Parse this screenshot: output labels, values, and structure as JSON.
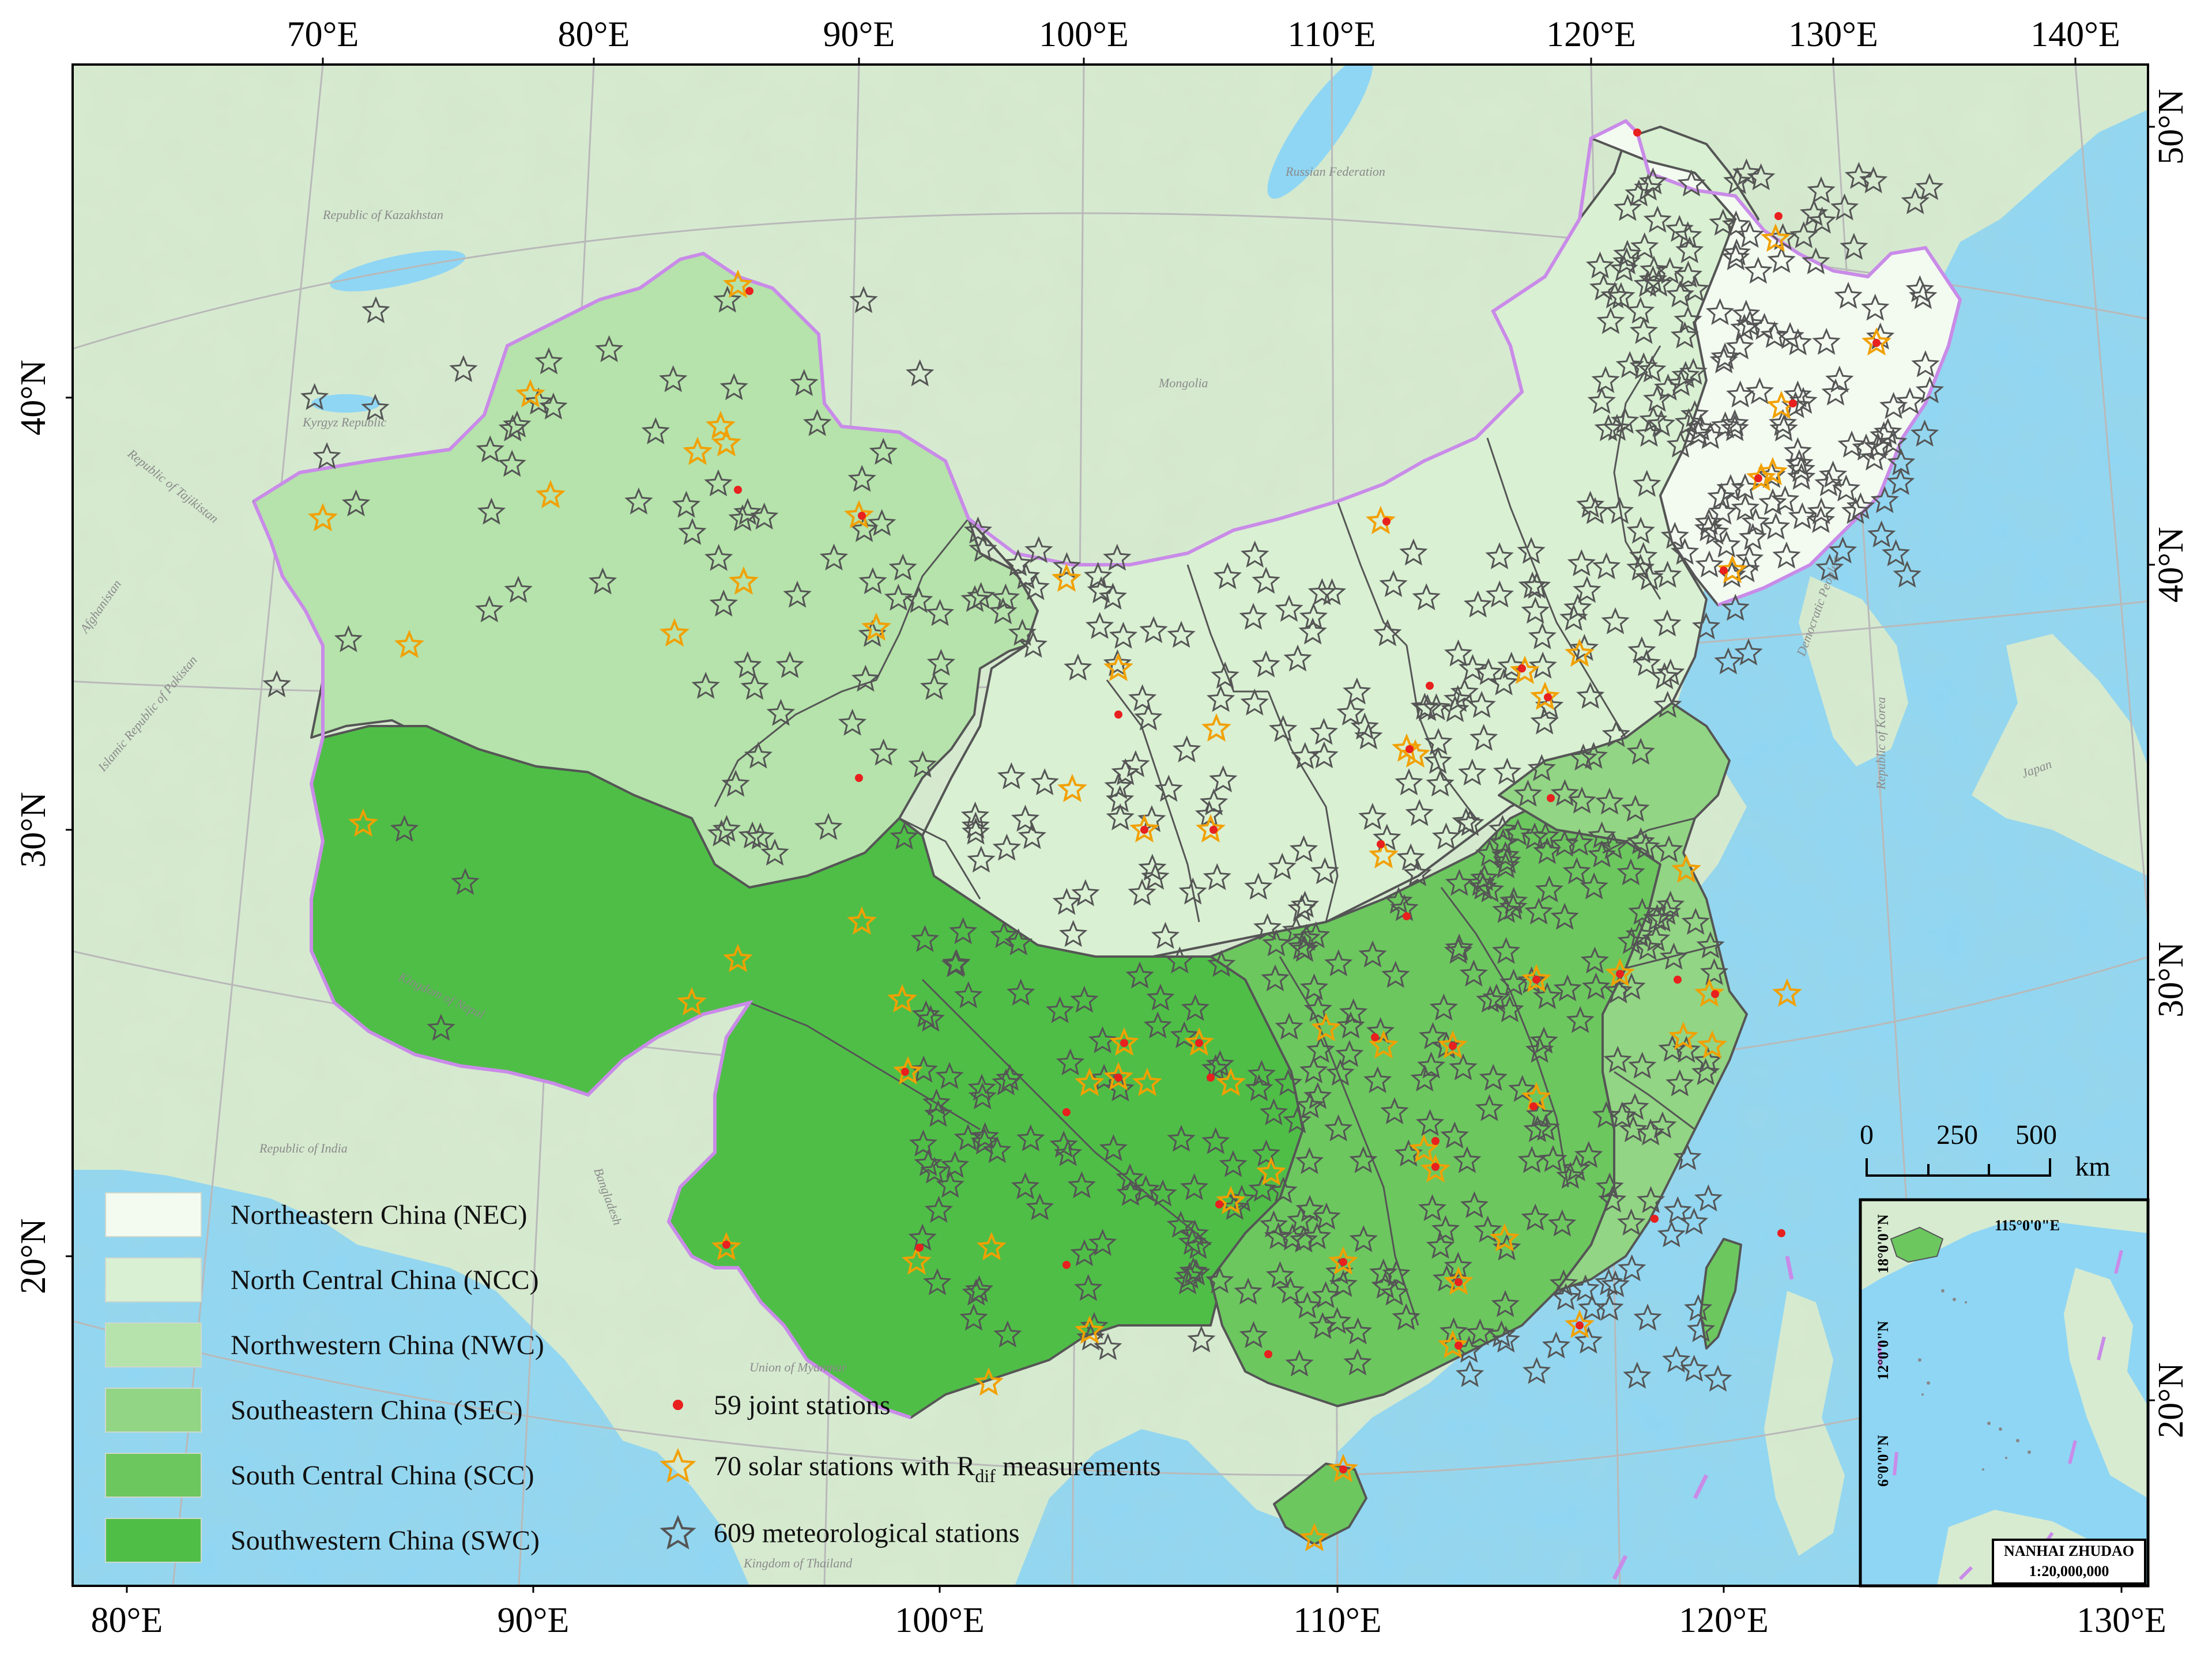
{
  "map": {
    "top_ticks": [
      "70°E",
      "80°E",
      "90°E",
      "100°E",
      "110°E",
      "120°E",
      "130°E",
      "140°E"
    ],
    "bottom_ticks": [
      "80°E",
      "90°E",
      "100°E",
      "110°E",
      "120°E",
      "130°E"
    ],
    "left_ticks": [
      "40°N",
      "30°N",
      "20°N"
    ],
    "right_ticks": [
      "50°N",
      "40°N",
      "30°N",
      "20°N"
    ],
    "countries": [
      "Russian Federation",
      "Republic of Kazakhstan",
      "Mongolia",
      "Kyrgyz Republic",
      "Republic of Tajikistan",
      "Afghanistan",
      "Islamic Republic of Pakistan",
      "Republic of India",
      "Kingdom of Nepal",
      "Bangladesh",
      "Union of Myanmar",
      "Kingdom of Thailand",
      "Democratic People's",
      "Republic of Korea",
      "Japan"
    ]
  },
  "legend": {
    "regions": [
      {
        "label": "Northeastern China (NEC)",
        "color": "#f3fbf1"
      },
      {
        "label": "North Central China (NCC)",
        "color": "#d9f0d3"
      },
      {
        "label": "Northwestern China (NWC)",
        "color": "#b5e3ab"
      },
      {
        "label": "Southeastern China (SEC)",
        "color": "#92d584"
      },
      {
        "label": "South Central China (SCC)",
        "color": "#6cc75f"
      },
      {
        "label": "Southwestern China (SWC)",
        "color": "#4fbe47"
      }
    ],
    "stations": {
      "joint": "59 joint stations",
      "solar_prefix": "70 solar stations with R",
      "solar_sub": "dif",
      "solar_suffix": " measurements",
      "met": "609 meteorological stations"
    }
  },
  "scalebar": {
    "ticks": [
      "0",
      "250",
      "500"
    ],
    "unit": "km"
  },
  "inset": {
    "lon_label": "115°0'0\"E",
    "lat_labels": [
      "18°0'0\"N",
      "12°0'0\"N",
      "6°0'0\"N"
    ],
    "title": "NANHAI ZHUDAO",
    "scale": "1:20,000,000"
  },
  "colors": {
    "ocean": "#8fd6f4",
    "land_outside": "#d6ead0",
    "region_border": "#555555",
    "national_border": "#c98be8",
    "solar_star": "#f2a000",
    "met_star": "#555555",
    "joint_dot": "#e8201e"
  }
}
